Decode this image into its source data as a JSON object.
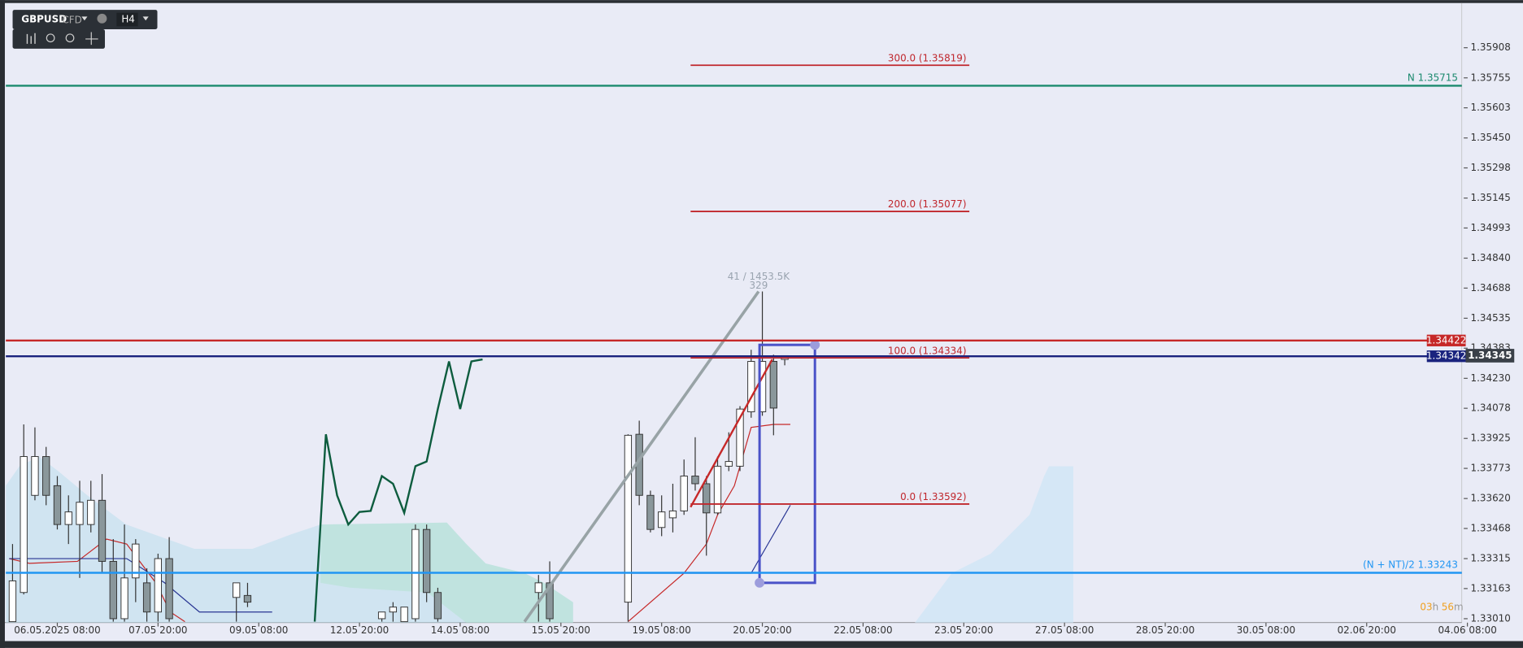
{
  "toolbar": {
    "symbol": "GBPUSD",
    "kind": "CFD",
    "timeframe": "H4"
  },
  "chart_data": {
    "type": "candlestick",
    "xlim": [
      -4.6,
      125.5
    ],
    "ylim": [
      1.3299,
      1.36125
    ],
    "xticks": [
      {
        "value": 0,
        "label": "06.05.2025 08:00"
      },
      {
        "value": 9,
        "label": "07.05 20:00"
      },
      {
        "value": 18,
        "label": "09.05 08:00"
      },
      {
        "value": 27,
        "label": "12.05 20:00"
      },
      {
        "value": 36,
        "label": "14.05 08:00"
      },
      {
        "value": 45,
        "label": "15.05 20:00"
      },
      {
        "value": 54,
        "label": "19.05 08:00"
      },
      {
        "value": 63,
        "label": "20.05 20:00"
      },
      {
        "value": 72,
        "label": "22.05 08:00"
      },
      {
        "value": 81,
        "label": "23.05 20:00"
      },
      {
        "value": 90,
        "label": "27.05 08:00"
      },
      {
        "value": 99,
        "label": "28.05 20:00"
      },
      {
        "value": 108,
        "label": "30.05 08:00"
      },
      {
        "value": 117,
        "label": "02.06 20:00"
      },
      {
        "value": 126,
        "label": "04.06 08:00"
      }
    ],
    "yticks": [
      1.35908,
      1.35755,
      1.35603,
      {
        "value": 1.3545,
        "label": "1.35450"
      },
      1.35298,
      1.35145,
      1.34993,
      {
        "value": 1.3484,
        "label": "1.34840"
      },
      1.34688,
      1.34535,
      1.34383,
      {
        "value": 1.3423,
        "label": "1.34230"
      },
      1.34078,
      1.33925,
      1.33773,
      {
        "value": 1.3362,
        "label": "1.33620"
      },
      1.33468,
      1.33315,
      1.33163,
      {
        "value": 1.3301,
        "label": "1.33010"
      }
    ],
    "x": [
      -4,
      -3,
      -2,
      -1,
      0,
      1,
      2,
      3,
      4,
      5,
      6,
      7,
      8,
      9,
      10,
      16,
      17,
      29,
      30,
      31,
      32,
      33,
      34,
      43,
      44,
      51,
      52,
      53,
      54,
      55,
      56,
      57,
      58,
      59,
      60,
      61,
      62,
      63,
      64,
      65
    ],
    "open": [
      1.32995,
      1.33143,
      1.33636,
      1.33833,
      1.33685,
      1.33488,
      1.33488,
      1.33488,
      1.33611,
      1.33301,
      1.3301,
      1.33217,
      1.33192,
      1.33044,
      1.33315,
      1.33118,
      1.33128,
      1.3301,
      1.33044,
      1.32995,
      1.3301,
      1.33463,
      1.33143,
      1.33143,
      1.33192,
      1.33094,
      1.33946,
      1.33636,
      1.33473,
      1.33522,
      1.33557,
      1.33734,
      1.33695,
      1.33547,
      1.33784,
      1.33784,
      1.3406,
      1.3406,
      1.34316,
      1.34326
    ],
    "high": [
      1.33389,
      1.33996,
      1.33981,
      1.33882,
      1.33734,
      1.33636,
      1.3371,
      1.3371,
      1.33744,
      1.33414,
      1.33488,
      1.33414,
      1.33266,
      1.3334,
      1.33424,
      1.33192,
      1.33192,
      1.33044,
      1.33094,
      1.33069,
      1.33488,
      1.33488,
      1.33167,
      1.33232,
      1.33301,
      1.33946,
      1.34015,
      1.3366,
      1.33636,
      1.33695,
      1.33818,
      1.33931,
      1.33734,
      1.33833,
      1.33956,
      1.34089,
      1.34375,
      1.34671,
      1.3435,
      1.34345
    ],
    "low": [
      1.32995,
      1.33133,
      1.33611,
      1.33586,
      1.33463,
      1.33389,
      1.33217,
      1.33448,
      1.33241,
      1.32995,
      1.32995,
      1.33094,
      1.32995,
      1.32995,
      1.32995,
      1.32995,
      1.33069,
      1.32995,
      1.32995,
      1.32995,
      1.32995,
      1.33094,
      1.32995,
      1.32995,
      1.32995,
      1.32995,
      1.33586,
      1.33448,
      1.33429,
      1.33448,
      1.33537,
      1.3366,
      1.3333,
      1.33537,
      1.33759,
      1.33759,
      1.3403,
      1.3404,
      1.33941,
      1.34296
    ],
    "close": [
      1.33202,
      1.33833,
      1.33833,
      1.33636,
      1.33488,
      1.33552,
      1.33601,
      1.33611,
      1.33301,
      1.3301,
      1.33217,
      1.33389,
      1.33044,
      1.33315,
      1.3301,
      1.33192,
      1.33094,
      1.33044,
      1.33069,
      1.33069,
      1.33463,
      1.33143,
      1.3301,
      1.33192,
      1.3301,
      1.33941,
      1.33636,
      1.33463,
      1.33552,
      1.33557,
      1.33734,
      1.33695,
      1.33547,
      1.33784,
      1.33808,
      1.34074,
      1.34316,
      1.34316,
      1.34079,
      1.34345
    ],
    "bull_color": "#ffffff",
    "bear_color": "#8a979b",
    "lines": [
      {
        "color": "#0d5c3e",
        "x": [
          23,
          24,
          25,
          26,
          27,
          28,
          29,
          30,
          31,
          32,
          33,
          34,
          35,
          36,
          37,
          38
        ],
        "values": [
          1.32995,
          1.33946,
          1.33636,
          1.33488,
          1.33552,
          1.33557,
          1.33734,
          1.33695,
          1.33547,
          1.33784,
          1.33808,
          1.34074,
          1.34316,
          1.34074,
          1.34316,
          1.34326
        ]
      },
      {
        "color": "#c62828",
        "x": [
          -4.3,
          -2.5,
          1.8,
          4.4,
          6.2,
          8.8,
          10.1,
          11.4
        ],
        "values": [
          1.33315,
          1.33291,
          1.33301,
          1.33414,
          1.33389,
          1.33192,
          1.33044,
          1.32995
        ]
      },
      {
        "color": "#c62828",
        "x": [
          51,
          56,
          58,
          59,
          60.5,
          62,
          64,
          65.5
        ],
        "values": [
          1.32995,
          1.33241,
          1.33389,
          1.33537,
          1.33685,
          1.33981,
          1.33996,
          1.33996
        ]
      },
      {
        "color": "#283593",
        "x": [
          -4.3,
          6.2,
          9.6,
          12.7,
          19.2
        ],
        "values": [
          1.33315,
          1.33315,
          1.33192,
          1.33044,
          1.33044
        ]
      },
      {
        "color": "#283593",
        "x": [
          51,
          62,
          63.5,
          65.5
        ],
        "values": [
          1.33241,
          1.33241,
          1.33389,
          1.33586
        ]
      }
    ],
    "levels": [
      {
        "value": 1.35715,
        "color": "#1b8a6e",
        "label": "N 1.35715"
      },
      {
        "value": 1.33243,
        "color": "#2196f3",
        "label": "(N + NT)/2 1.33243"
      },
      {
        "value": 1.34422,
        "color": "#c62828",
        "badge": "1.34422"
      },
      {
        "value": 1.34342,
        "color": "#1a237e",
        "badge": "1.34342"
      }
    ],
    "current_price": 1.34345,
    "fib": [
      {
        "value": 1.35819,
        "label": "300.0 (1.35819)"
      },
      {
        "value": 1.35077,
        "label": "200.0 (1.35077)"
      },
      {
        "value": 1.34334,
        "label": "100.0 (1.34334)"
      },
      {
        "value": 1.33592,
        "label": "0.0 (1.33592)"
      }
    ],
    "fib_color": "#c0272d",
    "annotation": {
      "line1": "41 / 1453.5K",
      "line2": "329"
    },
    "countdown": {
      "hours": "03",
      "h": "h",
      "minutes": "56",
      "m": "m"
    }
  }
}
